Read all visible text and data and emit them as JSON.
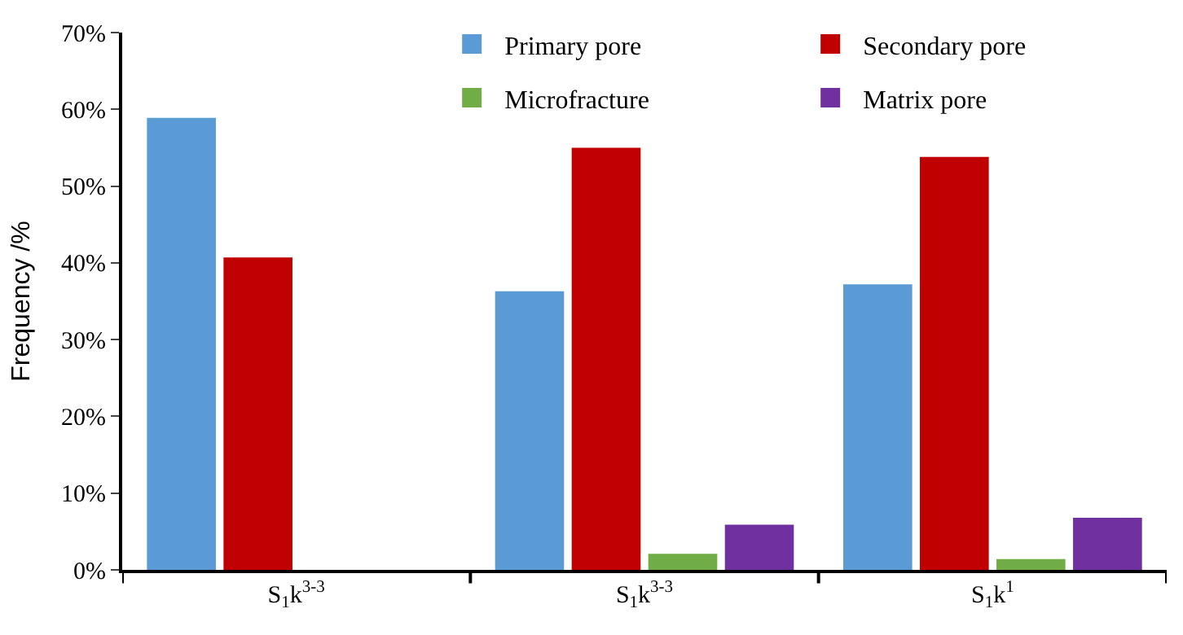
{
  "chart_data": {
    "type": "bar",
    "ylabel": "Frequency /%",
    "categories": [
      "S$_{1}$k$^{3-3}$",
      "S$_{1}$k$^{3-3}$",
      "S$_{1}$k$^{1}$"
    ],
    "series": [
      {
        "name": "Primary pore",
        "color": "#5b9bd5",
        "values": [
          58.9,
          36.3,
          37.2
        ]
      },
      {
        "name": "Secondary pore",
        "color": "#c00000",
        "values": [
          40.7,
          55.0,
          53.8
        ]
      },
      {
        "name": "Microfracture",
        "color": "#70ad47",
        "values": [
          null,
          2.1,
          1.4
        ]
      },
      {
        "name": "Matrix pore",
        "color": "#7030a0",
        "values": [
          null,
          5.9,
          6.8
        ]
      }
    ],
    "ylim": [
      0,
      70
    ],
    "yticks": [
      {
        "value": 0,
        "label": "0%"
      },
      {
        "value": 10,
        "label": "10%"
      },
      {
        "value": 20,
        "label": "20%"
      },
      {
        "value": 30,
        "label": "30%"
      },
      {
        "value": 40,
        "label": "40%"
      },
      {
        "value": 50,
        "label": "50%"
      },
      {
        "value": 60,
        "label": "60%"
      },
      {
        "value": 70,
        "label": "70%"
      }
    ],
    "legend": "top right"
  }
}
